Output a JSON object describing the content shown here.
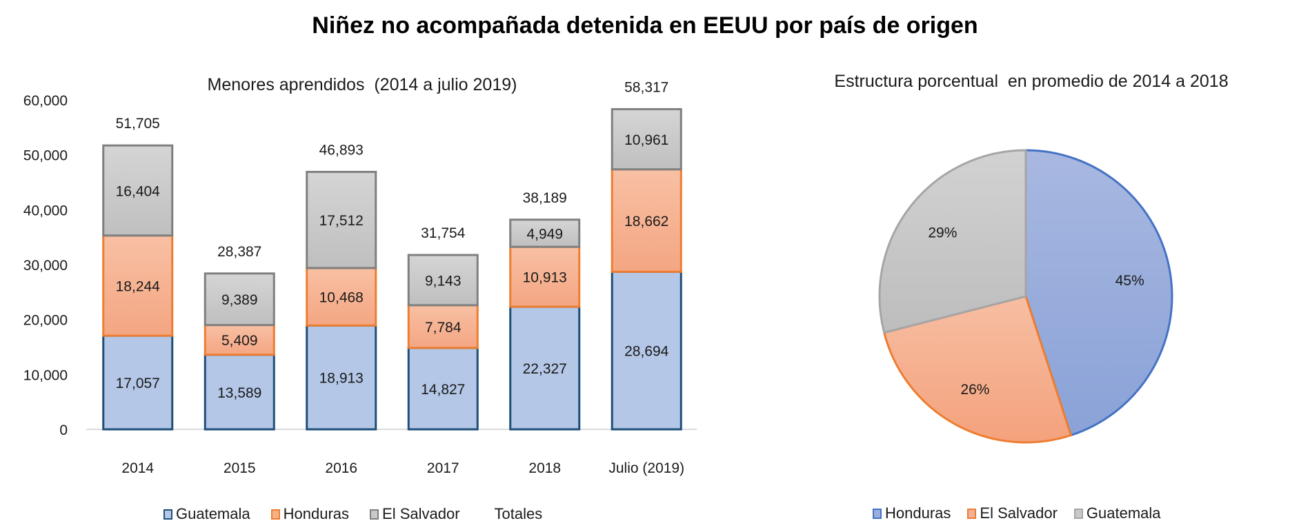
{
  "page_title": "Niñez no acompañada detenida en EEUU por país de origen",
  "chart_data": [
    {
      "type": "bar",
      "stacked": true,
      "title": "Menores aprendidos  (2014 a julio 2019)",
      "xlabel": "",
      "ylabel": "",
      "ylim": [
        0,
        60000
      ],
      "yticks": [
        0,
        10000,
        20000,
        30000,
        40000,
        50000,
        60000
      ],
      "ytick_labels": [
        "0",
        "10,000",
        "20,000",
        "30,000",
        "40,000",
        "50,000",
        "60,000"
      ],
      "categories": [
        "2014",
        "2015",
        "2016",
        "2017",
        "2018",
        "Julio (2019)"
      ],
      "series": [
        {
          "name": "Guatemala",
          "color": "#b4c7e7",
          "edge": "#1f4e79",
          "values": [
            17057,
            13589,
            18913,
            14827,
            22327,
            28694
          ],
          "labels": [
            "17,057",
            "13,589",
            "18,913",
            "14,827",
            "22,327",
            "28,694"
          ]
        },
        {
          "name": "Honduras",
          "color": "#f4b183",
          "edge": "#ed7d31",
          "values": [
            18244,
            5409,
            10468,
            7784,
            10913,
            18662
          ],
          "labels": [
            "18,244",
            "5,409",
            "10,468",
            "7,784",
            "10,913",
            "18,662"
          ]
        },
        {
          "name": "El Salvador",
          "color": "#c9c9c9",
          "edge": "#7f7f7f",
          "values": [
            16404,
            9389,
            17512,
            9143,
            4949,
            10961
          ],
          "labels": [
            "16,404",
            "9,389",
            "17,512",
            "9,143",
            "4,949",
            "10,961"
          ]
        }
      ],
      "totals": {
        "name": "Totales",
        "values": [
          51705,
          28387,
          46893,
          31754,
          38189,
          58317
        ],
        "labels": [
          "51,705",
          "28,387",
          "46,893",
          "31,754",
          "38,189",
          "58,317"
        ]
      },
      "grid": false,
      "legend": [
        "Guatemala",
        "Honduras",
        "El Salvador",
        "Totales"
      ],
      "legend_position": "bottom"
    },
    {
      "type": "pie",
      "title": "Estructura porcentual  en promedio de 2014 a 2018",
      "slices": [
        {
          "name": "Honduras",
          "value": 45,
          "label": "45%",
          "color": "#9aafdd",
          "edge": "#4472c4"
        },
        {
          "name": "El Salvador",
          "value": 26,
          "label": "26%",
          "color": "#f5b196",
          "edge": "#ed7d31"
        },
        {
          "name": "Guatemala",
          "value": 29,
          "label": "29%",
          "color": "#c9c9c9",
          "edge": "#a5a5a5"
        }
      ],
      "legend": [
        "Honduras",
        "El Salvador",
        "Guatemala"
      ],
      "legend_position": "bottom"
    }
  ]
}
